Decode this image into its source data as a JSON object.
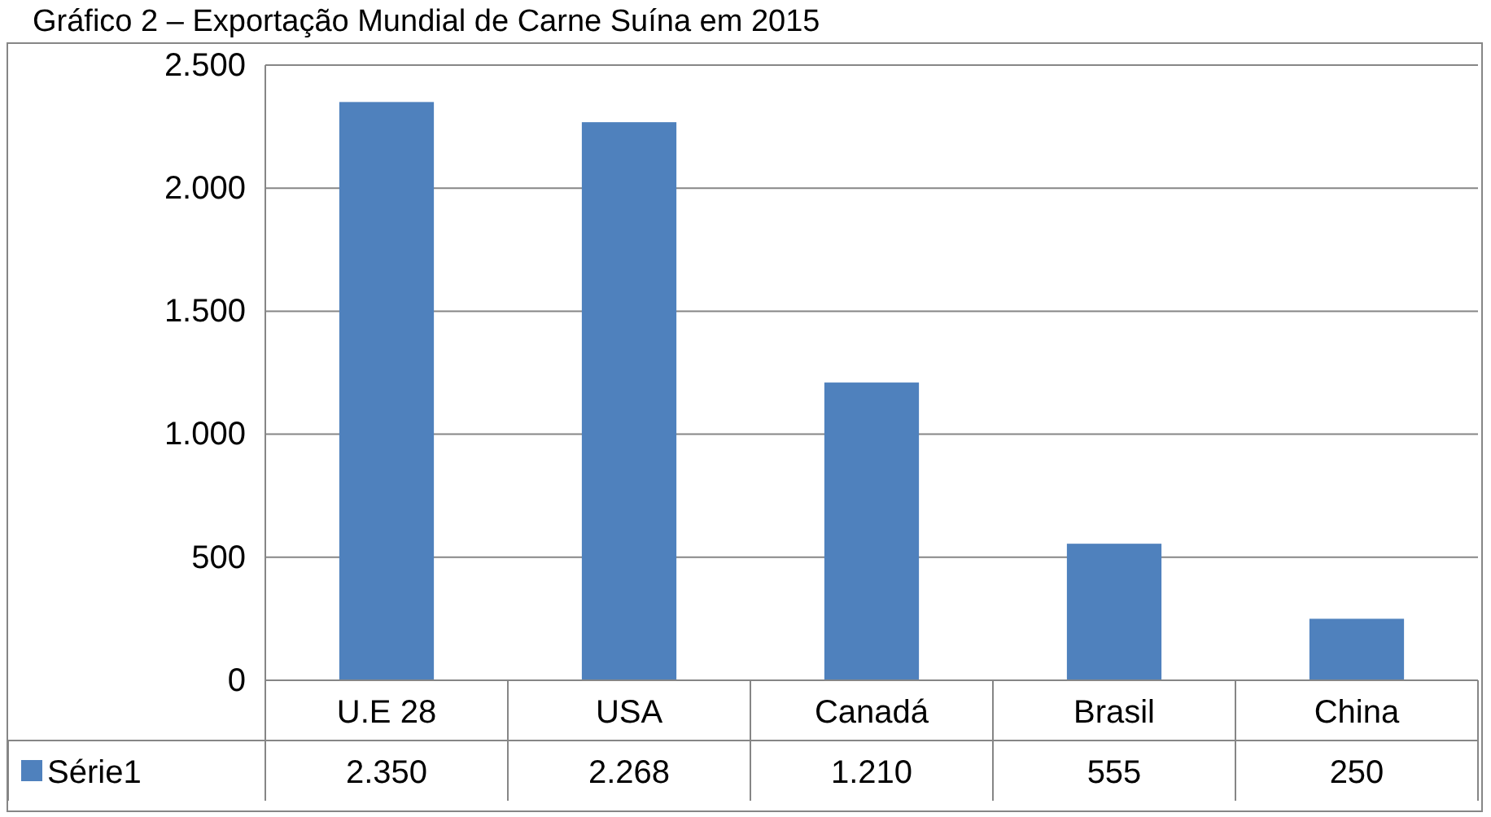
{
  "chart_data": {
    "type": "bar",
    "title": "Gráfico 2 – Exportação Mundial de Carne Suína em 2015",
    "categories": [
      "U.E 28",
      "USA",
      "Canadá",
      "Brasil",
      "China"
    ],
    "series": [
      {
        "name": "Série1",
        "color": "#4f81bd",
        "values": [
          2350,
          2268,
          1210,
          555,
          250
        ],
        "value_labels": [
          "2.350",
          "2.268",
          "1.210",
          "555",
          "250"
        ]
      }
    ],
    "ylim": [
      0,
      2500
    ],
    "yticks": [
      {
        "value": 0,
        "label": "0"
      },
      {
        "value": 500,
        "label": "500"
      },
      {
        "value": 1000,
        "label": "1.000"
      },
      {
        "value": 1500,
        "label": "1.500"
      },
      {
        "value": 2000,
        "label": "2.000"
      },
      {
        "value": 2500,
        "label": "2.500"
      }
    ],
    "grid": "y",
    "legend": "bottom left"
  }
}
